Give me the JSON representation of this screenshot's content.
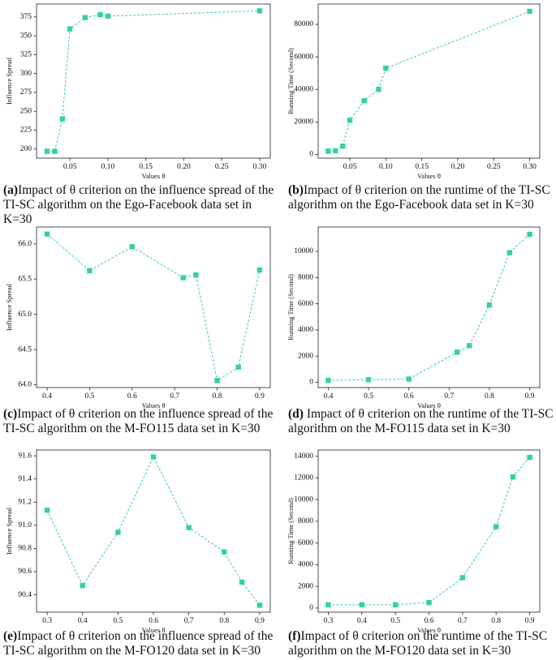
{
  "chart_data": [
    {
      "type": "line",
      "label": "(a)",
      "caption": "Impact of θ criterion on the influence spread of the TI-SC algorithm on the Ego-Facebook data set in K=30",
      "xlabel": "Values θ",
      "ylabel": "Influence Spread",
      "color": "#35d29b",
      "x": [
        0.02,
        0.03,
        0.04,
        0.05,
        0.07,
        0.09,
        0.1,
        0.3
      ],
      "values": [
        197,
        197,
        240,
        359,
        374,
        378,
        376,
        383
      ],
      "xlim": [
        0.006,
        0.314
      ],
      "xticks": [
        {
          "value": 0.05,
          "label": "0.05"
        },
        {
          "value": 0.1,
          "label": "0.10"
        },
        {
          "value": 0.15,
          "label": "0.15"
        },
        {
          "value": 0.2,
          "label": "0.20"
        },
        {
          "value": 0.25,
          "label": "0.25"
        },
        {
          "value": 0.3,
          "label": "0.30"
        }
      ],
      "ylim": [
        188,
        392
      ],
      "yticks": [
        200,
        225,
        250,
        275,
        300,
        325,
        350,
        375
      ]
    },
    {
      "type": "line",
      "label": "(b)",
      "caption": "Impact of θ criterion on the runtime of the TI-SC algorithm on the Ego-Facebook data set in K=30",
      "xlabel": "Values θ",
      "ylabel": "Running Time (Second)",
      "color": "#35d29b",
      "x": [
        0.02,
        0.03,
        0.04,
        0.05,
        0.07,
        0.09,
        0.1,
        0.3
      ],
      "values": [
        2000,
        2200,
        5000,
        21000,
        33000,
        40000,
        53000,
        88000
      ],
      "xlim": [
        0.006,
        0.314
      ],
      "xticks": [
        {
          "value": 0.05,
          "label": "0.05"
        },
        {
          "value": 0.1,
          "label": "0.10"
        },
        {
          "value": 0.15,
          "label": "0.15"
        },
        {
          "value": 0.2,
          "label": "0.20"
        },
        {
          "value": 0.25,
          "label": "0.25"
        },
        {
          "value": 0.3,
          "label": "0.30"
        }
      ],
      "ylim": [
        -2300,
        92500
      ],
      "yticks": [
        0,
        20000,
        40000,
        60000,
        80000
      ]
    },
    {
      "type": "line",
      "label": "(c)",
      "caption": "Impact of θ criterion on the influence spread of the TI-SC algorithm on the M-FO115 data set in K=30",
      "xlabel": "Values θ",
      "ylabel": "Influence Spread",
      "color": "#35d29b",
      "x": [
        0.4,
        0.5,
        0.6,
        0.72,
        0.75,
        0.8,
        0.85,
        0.9
      ],
      "values": [
        66.14,
        65.62,
        65.96,
        65.52,
        65.56,
        64.06,
        64.25,
        65.63
      ],
      "xlim": [
        0.375,
        0.925
      ],
      "xticks": [
        0.4,
        0.5,
        0.6,
        0.7,
        0.8,
        0.9
      ],
      "ylim": [
        63.96,
        66.24
      ],
      "yticks": [
        {
          "value": 64,
          "label": "64.0"
        },
        64.5,
        {
          "value": 65,
          "label": "65.0"
        },
        65.5,
        {
          "value": 66,
          "label": "66.0"
        }
      ]
    },
    {
      "type": "line",
      "label": "(d)",
      "caption": " Impact of θ criterion on the runtime of the TI-SC algorithm on the M-FO115 data set in K=30",
      "xlabel": "Values θ",
      "ylabel": "Running Time (Second)",
      "color": "#35d29b",
      "x": [
        0.4,
        0.5,
        0.6,
        0.72,
        0.75,
        0.8,
        0.85,
        0.9
      ],
      "values": [
        150,
        200,
        250,
        2300,
        2800,
        5900,
        9900,
        11300
      ],
      "xlim": [
        0.375,
        0.925
      ],
      "xticks": [
        0.4,
        0.5,
        0.6,
        0.7,
        0.8,
        0.9
      ],
      "ylim": [
        -400,
        11860
      ],
      "yticks": [
        0,
        2000,
        4000,
        6000,
        8000,
        10000
      ]
    },
    {
      "type": "line",
      "label": "(e)",
      "caption": "Impact of θ criterion on the influence spread of the TI-SC algorithm on the M-FO120 data set in K=30",
      "xlabel": "Values θ",
      "ylabel": "Influence Spread",
      "color": "#35d29b",
      "x": [
        0.3,
        0.4,
        0.5,
        0.6,
        0.7,
        0.8,
        0.85,
        0.9
      ],
      "values": [
        91.13,
        90.48,
        90.94,
        91.59,
        90.98,
        90.77,
        90.51,
        90.31
      ],
      "xlim": [
        0.27,
        0.93
      ],
      "xticks": [
        0.3,
        0.4,
        0.5,
        0.6,
        0.7,
        0.8,
        0.9
      ],
      "ylim": [
        90.25,
        91.65
      ],
      "yticks": [
        90.4,
        90.6,
        90.8,
        {
          "value": 91,
          "label": "91.0"
        },
        91.2,
        91.4,
        91.6
      ]
    },
    {
      "type": "line",
      "label": "(f)",
      "caption": "Impact of θ criterion on the runtime of the TI-SC algorithm on the M-FO120 data set in K=30",
      "xlabel": "Values θ",
      "ylabel": "Running Time (Second)",
      "color": "#35d29b",
      "x": [
        0.3,
        0.4,
        0.5,
        0.6,
        0.7,
        0.8,
        0.85,
        0.9
      ],
      "values": [
        300,
        300,
        300,
        500,
        2800,
        7500,
        12100,
        13900
      ],
      "xlim": [
        0.27,
        0.93
      ],
      "xticks": [
        0.3,
        0.4,
        0.5,
        0.6,
        0.7,
        0.8,
        0.9
      ],
      "ylim": [
        -380,
        14580
      ],
      "yticks": [
        0,
        2000,
        4000,
        6000,
        8000,
        10000,
        12000,
        14000
      ]
    }
  ]
}
